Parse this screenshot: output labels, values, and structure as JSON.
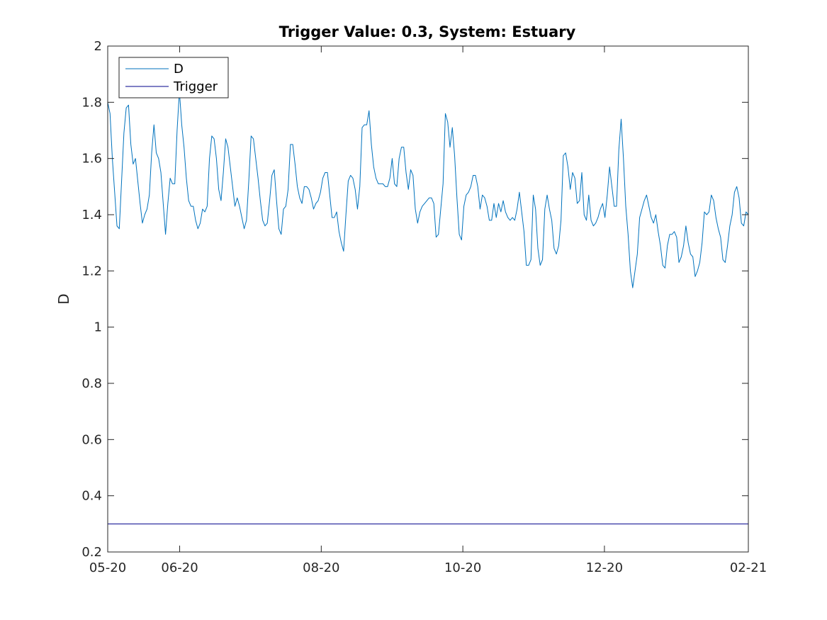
{
  "chart_data": {
    "type": "line",
    "title": "Trigger Value: 0.3, System: Estuary",
    "xlabel": "",
    "ylabel": "D",
    "ylim": [
      0.2,
      2
    ],
    "yticks": [
      "0.2",
      "0.4",
      "0.6",
      "0.8",
      "1",
      "1.2",
      "1.4",
      "1.6",
      "1.8",
      "2"
    ],
    "xticks": [
      "05-20",
      "06-20",
      "08-20",
      "10-20",
      "12-20",
      "02-21"
    ],
    "xlim": [
      "2020-05-01",
      "2021-02-01"
    ],
    "grid": false,
    "legend_position": "top-left",
    "colors": {
      "D": "#0072BD",
      "Trigger": "#00008B",
      "axes": "#262626"
    },
    "series": [
      {
        "name": "D",
        "x_start": "2020-05-01",
        "x_end": "2021-02-01",
        "values": [
          1.8,
          1.76,
          1.6,
          1.48,
          1.36,
          1.35,
          1.52,
          1.69,
          1.78,
          1.79,
          1.65,
          1.58,
          1.6,
          1.52,
          1.44,
          1.37,
          1.4,
          1.42,
          1.47,
          1.62,
          1.72,
          1.62,
          1.6,
          1.55,
          1.44,
          1.33,
          1.44,
          1.53,
          1.51,
          1.51,
          1.7,
          1.84,
          1.72,
          1.64,
          1.53,
          1.45,
          1.43,
          1.43,
          1.38,
          1.35,
          1.37,
          1.42,
          1.41,
          1.43,
          1.6,
          1.68,
          1.67,
          1.6,
          1.49,
          1.45,
          1.55,
          1.67,
          1.64,
          1.57,
          1.5,
          1.43,
          1.46,
          1.43,
          1.39,
          1.35,
          1.38,
          1.52,
          1.68,
          1.67,
          1.6,
          1.53,
          1.45,
          1.38,
          1.36,
          1.37,
          1.45,
          1.54,
          1.56,
          1.45,
          1.35,
          1.33,
          1.42,
          1.43,
          1.49,
          1.65,
          1.65,
          1.58,
          1.5,
          1.46,
          1.44,
          1.5,
          1.5,
          1.49,
          1.46,
          1.42,
          1.44,
          1.45,
          1.48,
          1.53,
          1.55,
          1.55,
          1.47,
          1.39,
          1.39,
          1.41,
          1.34,
          1.3,
          1.27,
          1.4,
          1.52,
          1.54,
          1.53,
          1.49,
          1.42,
          1.5,
          1.71,
          1.72,
          1.72,
          1.77,
          1.65,
          1.57,
          1.53,
          1.51,
          1.51,
          1.51,
          1.5,
          1.5,
          1.53,
          1.6,
          1.51,
          1.5,
          1.6,
          1.64,
          1.64,
          1.55,
          1.49,
          1.56,
          1.54,
          1.42,
          1.37,
          1.41,
          1.43,
          1.44,
          1.45,
          1.46,
          1.46,
          1.44,
          1.32,
          1.33,
          1.42,
          1.51,
          1.76,
          1.73,
          1.64,
          1.71,
          1.61,
          1.46,
          1.33,
          1.31,
          1.43,
          1.47,
          1.48,
          1.5,
          1.54,
          1.54,
          1.5,
          1.42,
          1.47,
          1.46,
          1.43,
          1.38,
          1.38,
          1.44,
          1.39,
          1.44,
          1.41,
          1.45,
          1.41,
          1.39,
          1.38,
          1.39,
          1.38,
          1.42,
          1.48,
          1.41,
          1.34,
          1.22,
          1.22,
          1.24,
          1.47,
          1.42,
          1.28,
          1.22,
          1.24,
          1.42,
          1.47,
          1.42,
          1.38,
          1.28,
          1.26,
          1.29,
          1.38,
          1.61,
          1.62,
          1.57,
          1.49,
          1.55,
          1.53,
          1.44,
          1.45,
          1.55,
          1.4,
          1.38,
          1.47,
          1.38,
          1.36,
          1.37,
          1.39,
          1.42,
          1.44,
          1.39,
          1.47,
          1.57,
          1.5,
          1.43,
          1.43,
          1.63,
          1.74,
          1.6,
          1.43,
          1.33,
          1.2,
          1.14,
          1.2,
          1.26,
          1.39,
          1.42,
          1.45,
          1.47,
          1.43,
          1.39,
          1.37,
          1.4,
          1.34,
          1.29,
          1.22,
          1.21,
          1.29,
          1.33,
          1.33,
          1.34,
          1.32,
          1.23,
          1.25,
          1.29,
          1.36,
          1.3,
          1.26,
          1.25,
          1.18,
          1.2,
          1.23,
          1.3,
          1.41,
          1.4,
          1.41,
          1.47,
          1.45,
          1.39,
          1.35,
          1.32,
          1.24,
          1.23,
          1.29,
          1.36,
          1.4,
          1.48,
          1.5,
          1.46,
          1.37,
          1.36,
          1.41,
          1.4
        ]
      },
      {
        "name": "Trigger",
        "x_start": "2020-05-01",
        "x_end": "2021-02-01",
        "values": [
          0.3,
          0.3
        ]
      }
    ]
  }
}
